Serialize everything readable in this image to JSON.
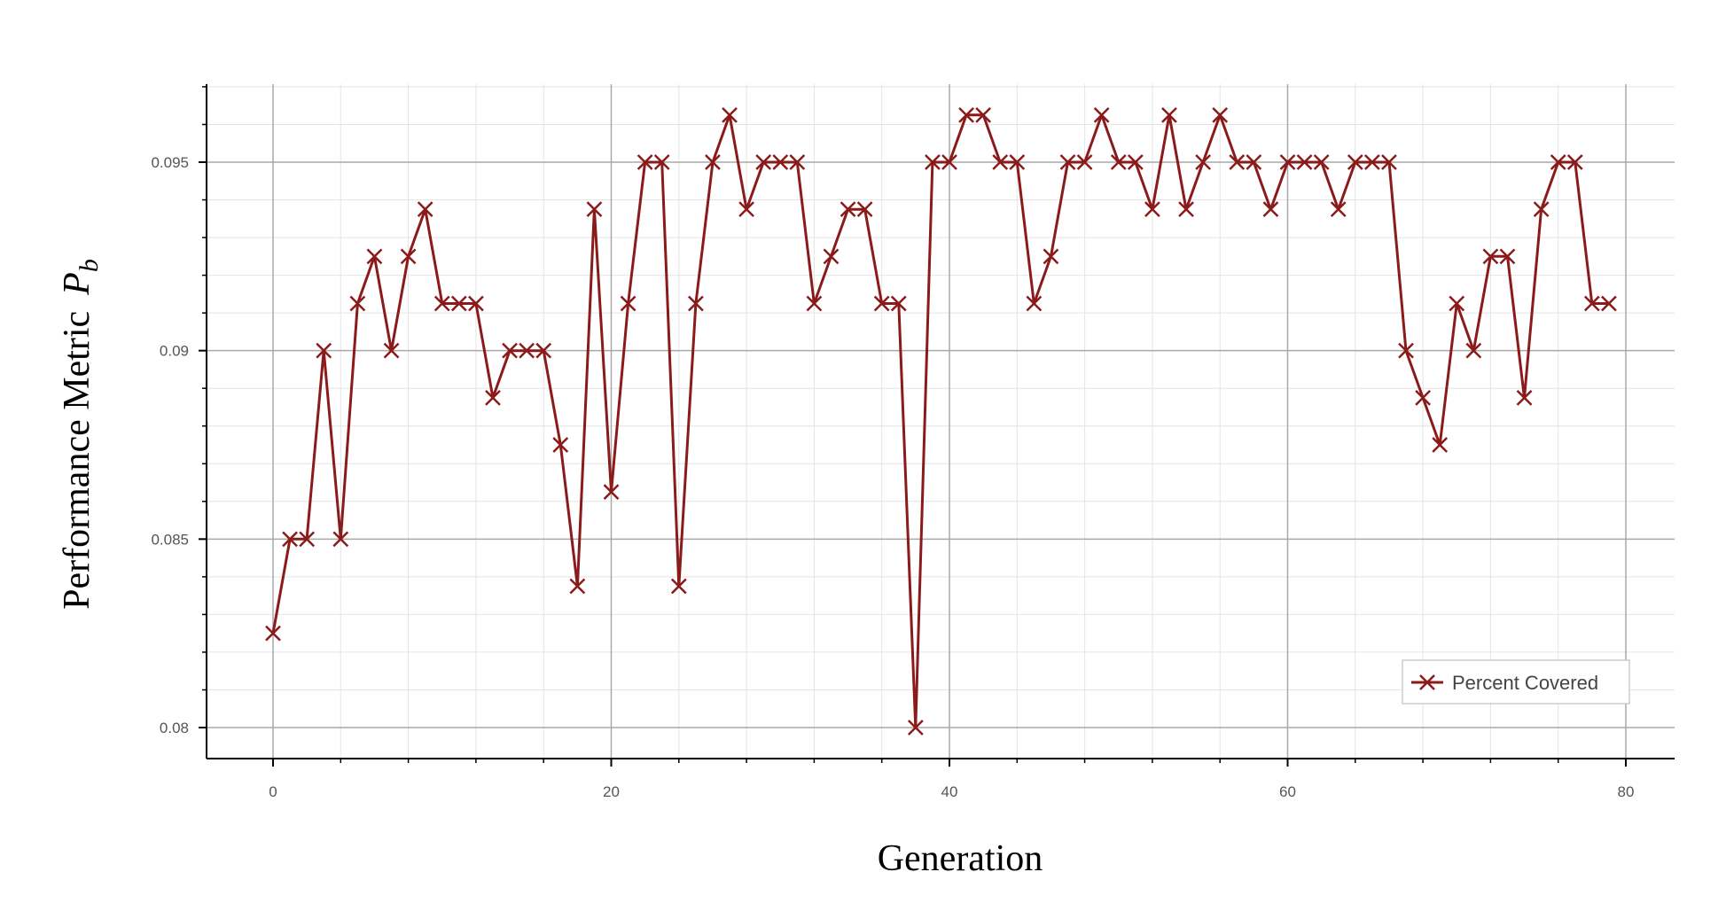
{
  "chart_data": {
    "type": "line",
    "xlabel": "Generation",
    "ylabel": "Performance Metric",
    "ylabel_symbol": "P",
    "ylabel_subscript": "b",
    "xlim": [
      -5,
      80
    ],
    "ylim": [
      0.0792,
      0.097
    ],
    "x_ticks": [
      0,
      20,
      40,
      60,
      80
    ],
    "x_tick_labels": [
      "0",
      "20",
      "40",
      "60",
      "80"
    ],
    "y_ticks": [
      0.08,
      0.085,
      0.09,
      0.095
    ],
    "y_tick_labels": [
      "0.08",
      "0.085",
      "0.09",
      "0.095"
    ],
    "grid": true,
    "legend_position": "bottom-right",
    "series": [
      {
        "name": "Percent Covered",
        "color": "#8b1a1a",
        "marker": "x",
        "x": [
          0,
          1,
          2,
          3,
          4,
          5,
          6,
          7,
          8,
          9,
          10,
          11,
          12,
          13,
          14,
          15,
          16,
          17,
          18,
          19,
          20,
          21,
          22,
          23,
          24,
          25,
          26,
          27,
          28,
          29,
          30,
          31,
          32,
          33,
          34,
          35,
          36,
          37,
          38,
          39,
          40,
          41,
          42,
          43,
          44,
          45,
          46,
          47,
          48,
          49,
          50,
          51,
          52,
          53,
          54,
          55,
          56,
          57,
          58,
          59,
          60,
          61,
          62,
          63,
          64,
          65,
          66,
          67,
          68,
          69,
          70,
          71,
          72,
          73,
          74,
          75,
          76,
          77,
          78,
          79
        ],
        "values": [
          0.0825,
          0.085,
          0.085,
          0.09,
          0.085,
          0.09125,
          0.0925,
          0.09,
          0.0925,
          0.09375,
          0.09125,
          0.09125,
          0.09125,
          0.08875,
          0.09,
          0.09,
          0.09,
          0.0875,
          0.08375,
          0.09375,
          0.08625,
          0.09125,
          0.095,
          0.095,
          0.08375,
          0.09125,
          0.095,
          0.09625,
          0.09375,
          0.095,
          0.095,
          0.095,
          0.09125,
          0.0925,
          0.09375,
          0.09375,
          0.09125,
          0.09125,
          0.08,
          0.095,
          0.095,
          0.09625,
          0.09625,
          0.095,
          0.095,
          0.09125,
          0.0925,
          0.095,
          0.095,
          0.09625,
          0.095,
          0.095,
          0.09375,
          0.09625,
          0.09375,
          0.095,
          0.09625,
          0.095,
          0.095,
          0.09375,
          0.095,
          0.095,
          0.095,
          0.09375,
          0.095,
          0.095,
          0.095,
          0.09,
          0.08875,
          0.0875,
          0.09125,
          0.09,
          0.0925,
          0.0925,
          0.08875,
          0.09375,
          0.095,
          0.095,
          0.09125,
          0.09125
        ]
      }
    ]
  }
}
